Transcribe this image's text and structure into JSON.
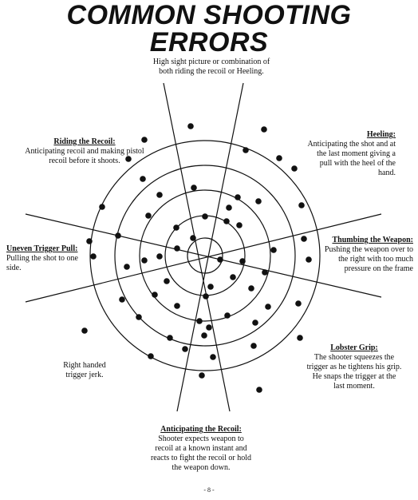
{
  "title": {
    "line1": "COMMON SHOOTING",
    "line2": "ERRORS"
  },
  "notes": {
    "top": {
      "heading": "",
      "text": "High sight picture or combination of both riding the recoil or Heeling."
    },
    "riding_recoil": {
      "heading": "Riding the Recoil:",
      "text": "Anticipating recoil and making pistol recoil before it shoots."
    },
    "heeling": {
      "heading": "Heeling:",
      "text": "Anticipating the shot and at the last moment giving a pull with the heel of the hand."
    },
    "uneven_trigger": {
      "heading": "Uneven Trigger Pull:",
      "text": "Pulling the shot to one side."
    },
    "thumbing": {
      "heading": "Thumbing the Weapon:",
      "text": "Pushing the weapon over to the right with too much pressure on the frame"
    },
    "lobster_grip": {
      "heading": "Lobster Grip:",
      "text": "The shooter squeezes the trigger as he tightens his grip. He snaps the trigger at the last moment."
    },
    "right_handed": {
      "heading": "",
      "text": "Right handed trigger jerk."
    },
    "anticipating_recoil": {
      "heading": "Anticipating the Recoil:",
      "text": "Shooter expects weapon to recoil at a known instant and reacts to fight the recoil or hold the weapon down."
    }
  },
  "page_number": "- 8 -"
}
